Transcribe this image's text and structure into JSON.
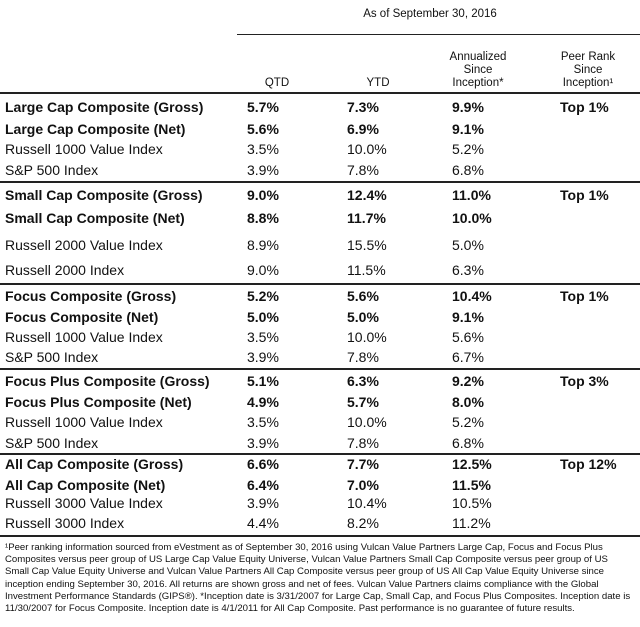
{
  "header": {
    "as_of": "As of September 30, 2016",
    "columns": [
      [
        "QTD"
      ],
      [
        "YTD"
      ],
      [
        "Annualized",
        "Since",
        "Inception*"
      ],
      [
        "Peer Rank",
        "Since",
        "Inception¹"
      ]
    ]
  },
  "table": {
    "groups": [
      [
        [
          "Large Cap Composite (Gross)",
          "5.7%",
          "7.3%",
          "9.9%",
          "Top 1%"
        ],
        [
          "Large Cap Composite (Net)",
          "5.6%",
          "6.9%",
          "9.1%"
        ],
        [
          "Russell 1000 Value Index",
          "3.5%",
          "10.0%",
          "5.2%"
        ],
        [
          "S&P 500 Index",
          "3.9%",
          "7.8%",
          "6.8%"
        ]
      ],
      [
        [
          "Small Cap Composite (Gross)",
          "9.0%",
          "12.4%",
          "11.0%",
          "Top 1%"
        ],
        [
          "Small Cap Composite (Net)",
          "8.8%",
          "11.7%",
          "10.0%"
        ],
        [
          "Russell 2000 Value Index",
          "8.9%",
          "15.5%",
          "5.0%"
        ],
        [
          "Russell 2000 Index",
          "9.0%",
          "11.5%",
          "6.3%"
        ]
      ],
      [
        [
          "Focus Composite (Gross)",
          "5.2%",
          "5.6%",
          "10.4%",
          "Top 1%"
        ],
        [
          "Focus Composite (Net)",
          "5.0%",
          "5.0%",
          "9.1%"
        ],
        [
          "Russell 1000 Value Index",
          "3.5%",
          "10.0%",
          "5.6%"
        ],
        [
          "S&P 500 Index",
          "3.9%",
          "7.8%",
          "6.7%"
        ]
      ],
      [
        [
          "Focus Plus Composite (Gross)",
          "5.1%",
          "6.3%",
          "9.2%",
          "Top 3%"
        ],
        [
          "Focus Plus Composite (Net)",
          "4.9%",
          "5.7%",
          "8.0%"
        ],
        [
          "Russell 1000 Value Index",
          "3.5%",
          "10.0%",
          "5.2%"
        ],
        [
          "S&P 500 Index",
          "3.9%",
          "7.8%",
          "6.8%"
        ]
      ],
      [
        [
          "All Cap Composite (Gross)",
          "6.6%",
          "7.7%",
          "12.5%",
          "Top 12%"
        ],
        [
          "All Cap Composite (Net)",
          "6.4%",
          "7.0%",
          "11.5%"
        ],
        [
          "Russell 3000 Value Index",
          "3.9%",
          "10.4%",
          "10.5%"
        ],
        [
          "Russell 3000 Index",
          "4.4%",
          "8.2%",
          "11.2%"
        ]
      ]
    ]
  },
  "footnote": "¹Peer ranking information sourced from eVestment as of September 30, 2016 using Vulcan Value Partners Large Cap, Focus and Focus Plus Composites versus peer group of US Large Cap Value Equity Universe, Vulcan Value Partners Small Cap Composite versus peer group of US Small Cap Value Equity Universe and Vulcan Value Partners All Cap Composite versus peer group of US All Cap Value Equity Universe since inception ending September 30, 2016.  All returns are shown gross and net of fees.  Vulcan Value Partners claims compliance with the Global Investment Performance Standards (GIPS®).  *Inception date is 3/31/2007 for Large Cap, Small Cap, and Focus Plus Composites.  Inception date is 11/30/2007 for Focus Composite.  Inception date is 4/1/2011 for All Cap Composite.  Past performance is no guarantee of future results."
}
